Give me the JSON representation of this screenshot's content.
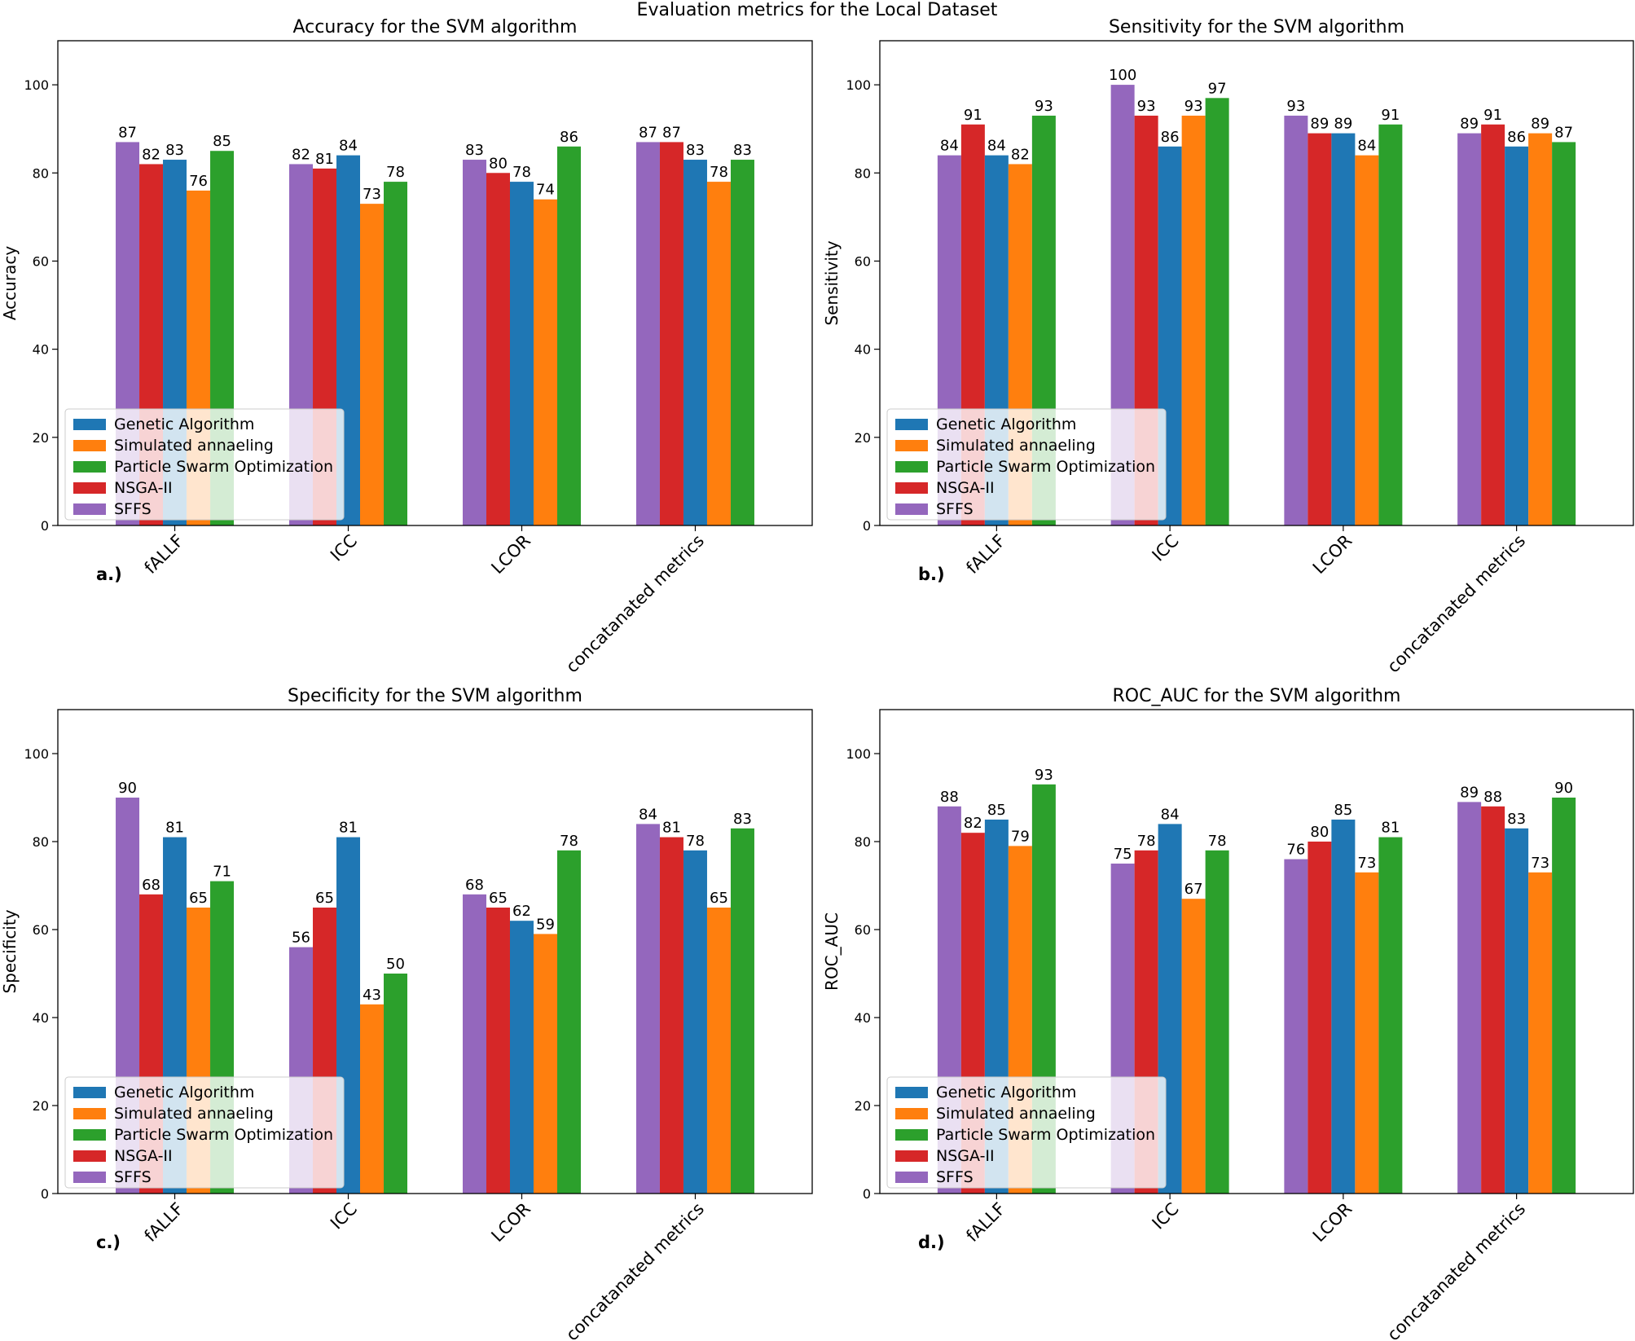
{
  "figure_title": "Evaluation metrics for the Local Dataset",
  "colors": {
    "Genetic Algorithm": "#1f77b4",
    "Simulated annaeling": "#ff7f0e",
    "Particle Swarm Optimization": "#2ca02c",
    "NSGA-II": "#d62728",
    "SFFS": "#9467bd"
  },
  "chart_data": [
    {
      "type": "bar",
      "panel_label": "a.)",
      "title": "Accuracy for the SVM algorithm",
      "ylabel": "Accuracy",
      "xlabel": "",
      "ylim": [
        0,
        110
      ],
      "yticks": [
        0,
        20,
        40,
        60,
        80,
        100
      ],
      "grid": false,
      "legend_position": "lower-left",
      "categories": [
        "fALLF",
        "ICC",
        "LCOR",
        "concatanated metrics"
      ],
      "series": [
        {
          "name": "SFFS",
          "values": [
            87,
            82,
            83,
            87
          ]
        },
        {
          "name": "NSGA-II",
          "values": [
            82,
            81,
            80,
            87
          ]
        },
        {
          "name": "Genetic Algorithm",
          "values": [
            83,
            84,
            78,
            83
          ]
        },
        {
          "name": "Simulated annaeling",
          "values": [
            76,
            73,
            74,
            78
          ]
        },
        {
          "name": "Particle Swarm Optimization",
          "values": [
            85,
            78,
            86,
            83
          ]
        }
      ]
    },
    {
      "type": "bar",
      "panel_label": "b.)",
      "title": "Sensitivity for the SVM algorithm",
      "ylabel": "Sensitivity",
      "xlabel": "",
      "ylim": [
        0,
        110
      ],
      "yticks": [
        0,
        20,
        40,
        60,
        80,
        100
      ],
      "grid": false,
      "legend_position": "lower-left",
      "categories": [
        "fALLF",
        "ICC",
        "LCOR",
        "concatanated metrics"
      ],
      "series": [
        {
          "name": "SFFS",
          "values": [
            84,
            100,
            93,
            89
          ]
        },
        {
          "name": "NSGA-II",
          "values": [
            91,
            93,
            89,
            91
          ]
        },
        {
          "name": "Genetic Algorithm",
          "values": [
            84,
            86,
            89,
            86
          ]
        },
        {
          "name": "Simulated annaeling",
          "values": [
            82,
            93,
            84,
            89
          ]
        },
        {
          "name": "Particle Swarm Optimization",
          "values": [
            93,
            97,
            91,
            87
          ]
        }
      ]
    },
    {
      "type": "bar",
      "panel_label": "c.)",
      "title": "Specificity for the SVM algorithm",
      "ylabel": "Specificity",
      "xlabel": "",
      "ylim": [
        0,
        110
      ],
      "yticks": [
        0,
        20,
        40,
        60,
        80,
        100
      ],
      "grid": false,
      "legend_position": "lower-left",
      "categories": [
        "fALLF",
        "ICC",
        "LCOR",
        "concatanated metrics"
      ],
      "series": [
        {
          "name": "SFFS",
          "values": [
            90,
            56,
            68,
            84
          ]
        },
        {
          "name": "NSGA-II",
          "values": [
            68,
            65,
            65,
            81
          ]
        },
        {
          "name": "Genetic Algorithm",
          "values": [
            81,
            81,
            62,
            78
          ]
        },
        {
          "name": "Simulated annaeling",
          "values": [
            65,
            43,
            59,
            65
          ]
        },
        {
          "name": "Particle Swarm Optimization",
          "values": [
            71,
            50,
            78,
            83
          ]
        }
      ]
    },
    {
      "type": "bar",
      "panel_label": "d.)",
      "title": "ROC_AUC for the SVM algorithm",
      "ylabel": "ROC_AUC",
      "xlabel": "",
      "ylim": [
        0,
        110
      ],
      "yticks": [
        0,
        20,
        40,
        60,
        80,
        100
      ],
      "grid": false,
      "legend_position": "lower-left",
      "categories": [
        "fALLF",
        "ICC",
        "LCOR",
        "concatanated metrics"
      ],
      "series": [
        {
          "name": "SFFS",
          "values": [
            88,
            75,
            76,
            89
          ]
        },
        {
          "name": "NSGA-II",
          "values": [
            82,
            78,
            80,
            88
          ]
        },
        {
          "name": "Genetic Algorithm",
          "values": [
            85,
            84,
            85,
            83
          ]
        },
        {
          "name": "Simulated annaeling",
          "values": [
            79,
            67,
            73,
            73
          ]
        },
        {
          "name": "Particle Swarm Optimization",
          "values": [
            93,
            78,
            81,
            90
          ]
        }
      ]
    }
  ],
  "legend_order": [
    "Genetic Algorithm",
    "Simulated annaeling",
    "Particle Swarm Optimization",
    "NSGA-II",
    "SFFS"
  ]
}
